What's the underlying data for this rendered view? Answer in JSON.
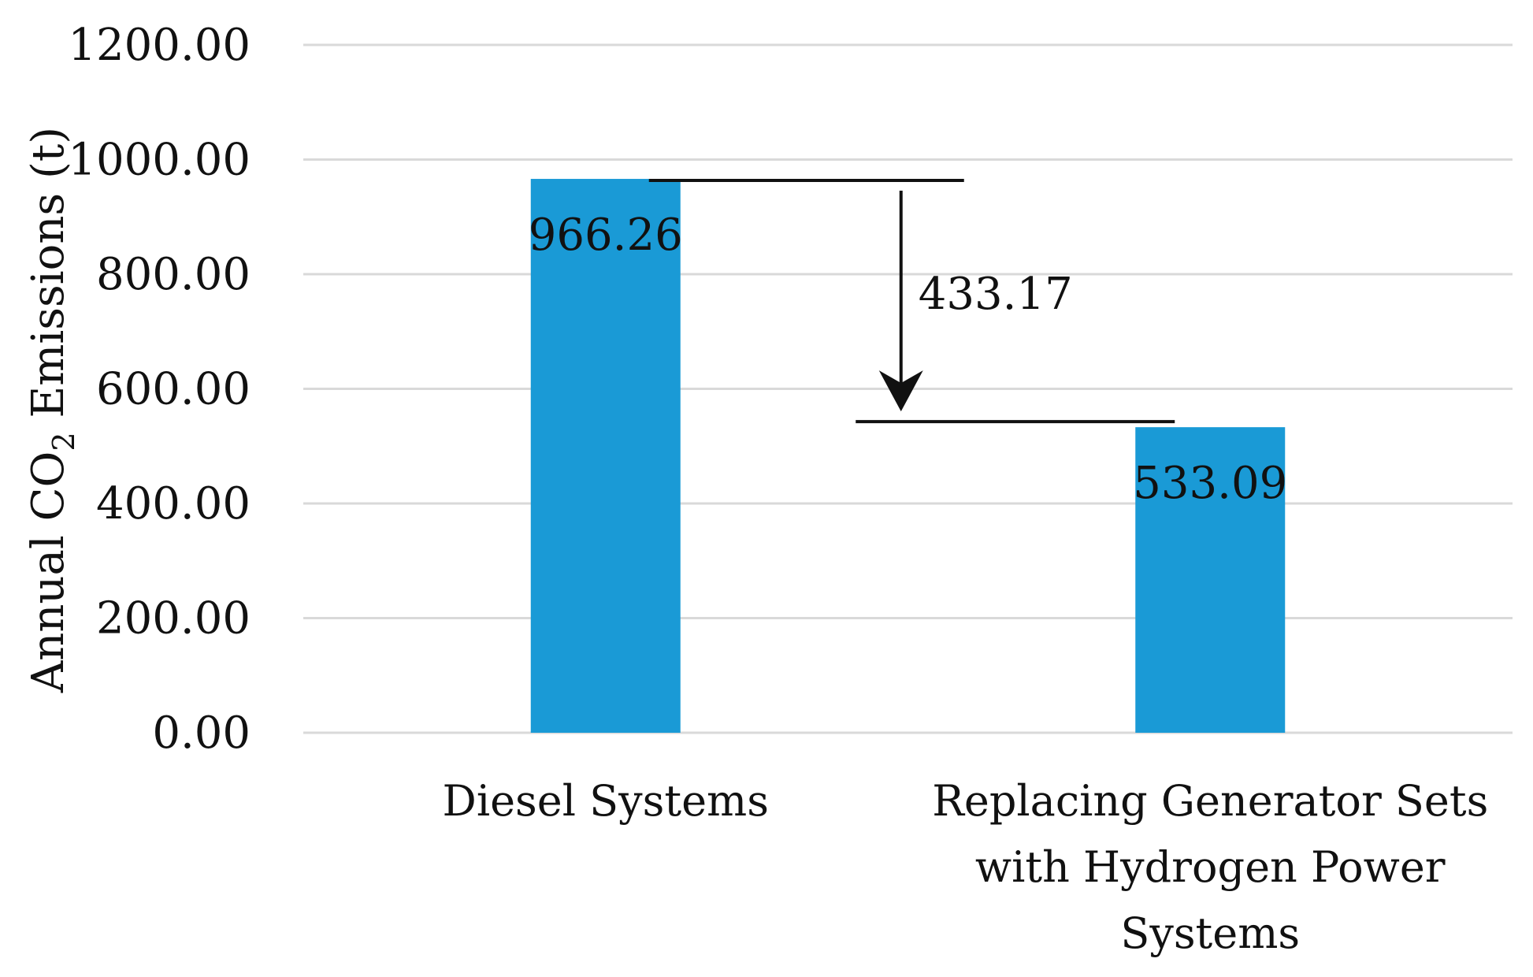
{
  "chart_data": {
    "type": "bar",
    "categories": [
      [
        "Diesel Systems"
      ],
      [
        "Replacing Generator Sets",
        "with Hydrogen Power",
        "Systems"
      ]
    ],
    "values": [
      966.26,
      533.09
    ],
    "data_labels": [
      "966.26",
      "533.09"
    ],
    "ylabel": "Annual CO",
    "ylabel_subscript": "2",
    "ylabel_suffix": " Emissions (t)",
    "ylim": [
      0,
      1200
    ],
    "yticks": [
      0,
      200,
      400,
      600,
      800,
      1000,
      1200
    ],
    "ytick_labels": [
      "0.00",
      "200.00",
      "400.00",
      "600.00",
      "800.00",
      "1000.00",
      "1200.00"
    ],
    "grid": true,
    "bar_color": "#1a9ad6",
    "annotation": {
      "text": "433.17",
      "value": 433.17,
      "from": 966.26,
      "to": 533.09
    }
  }
}
